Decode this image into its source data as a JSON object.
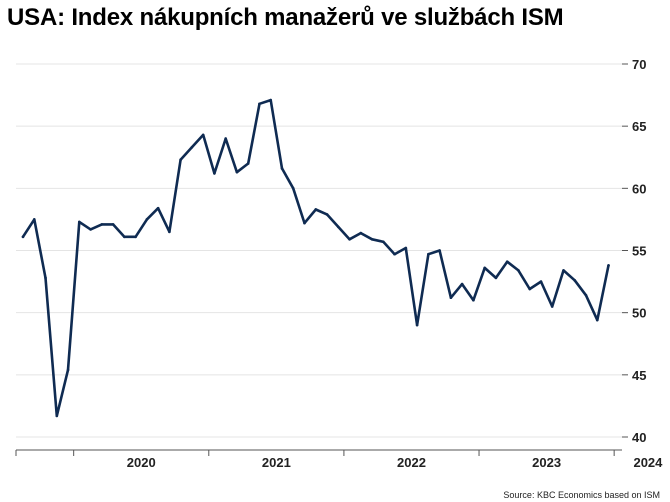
{
  "chart_data": {
    "type": "line",
    "title": "USA: Index nákupních manažerů ve službách ISM",
    "source": "Source: KBC Economics based on ISM",
    "xlabel": "",
    "ylabel": "",
    "ylim": [
      40,
      70
    ],
    "yticks": [
      40,
      45,
      50,
      55,
      60,
      65,
      70
    ],
    "y_axis_side": "right",
    "grid": "horizontal",
    "line_color": "#0f2b52",
    "x_start_month": "2019-08",
    "year_labels": [
      {
        "label": "2020",
        "month": "2020-07"
      },
      {
        "label": "2021",
        "month": "2021-07"
      },
      {
        "label": "2022",
        "month": "2022-07"
      },
      {
        "label": "2023",
        "month": "2023-07"
      },
      {
        "label": "2024",
        "month": "2024-04"
      }
    ],
    "series": [
      {
        "values": [
          56.1,
          57.5,
          52.8,
          41.7,
          45.4,
          57.3,
          56.7,
          57.1,
          57.1,
          56.1,
          56.1,
          57.5,
          58.4,
          56.5,
          62.3,
          63.3,
          64.3,
          61.2,
          64.0,
          61.3,
          62.0,
          66.8,
          67.1,
          61.6,
          60.0,
          57.2,
          58.3,
          57.9,
          56.9,
          55.9,
          56.4,
          55.9,
          55.7,
          54.7,
          55.2,
          49.0,
          54.7,
          55.0,
          51.2,
          52.3,
          51.0,
          53.6,
          52.8,
          54.1,
          53.4,
          51.9,
          52.5,
          50.5,
          53.4,
          52.6,
          51.4,
          49.4,
          53.8
        ]
      }
    ]
  }
}
